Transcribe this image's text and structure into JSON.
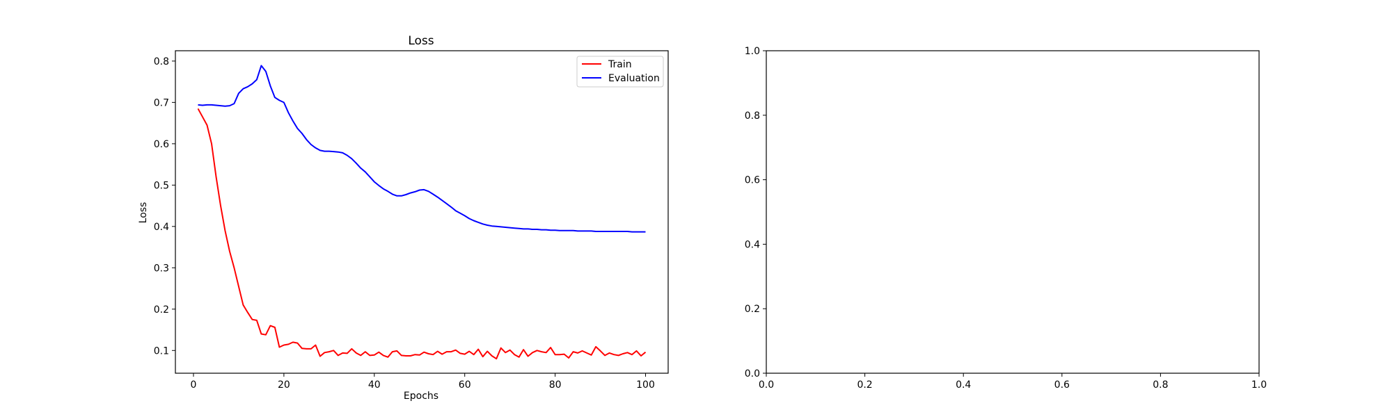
{
  "chart_data": [
    {
      "type": "line",
      "title": "Loss",
      "xlabel": "Epochs",
      "ylabel": "Loss",
      "xlim": [
        -4,
        105
      ],
      "ylim": [
        0.045,
        0.825
      ],
      "xticks": [
        0,
        20,
        40,
        60,
        80,
        100
      ],
      "yticks": [
        0.1,
        0.2,
        0.3,
        0.4,
        0.5,
        0.6,
        0.7,
        0.8
      ],
      "xtick_labels": [
        "0",
        "20",
        "40",
        "60",
        "80",
        "100"
      ],
      "ytick_labels": [
        "0.1",
        "0.2",
        "0.3",
        "0.4",
        "0.5",
        "0.6",
        "0.7",
        "0.8"
      ],
      "grid": false,
      "legend_position": "upper right",
      "x": [
        1,
        2,
        3,
        4,
        5,
        6,
        7,
        8,
        9,
        10,
        11,
        12,
        13,
        14,
        15,
        16,
        17,
        18,
        19,
        20,
        21,
        22,
        23,
        24,
        25,
        26,
        27,
        28,
        29,
        30,
        31,
        32,
        33,
        34,
        35,
        36,
        37,
        38,
        39,
        40,
        41,
        42,
        43,
        44,
        45,
        46,
        47,
        48,
        49,
        50,
        51,
        52,
        53,
        54,
        55,
        56,
        57,
        58,
        59,
        60,
        61,
        62,
        63,
        64,
        65,
        66,
        67,
        68,
        69,
        70,
        71,
        72,
        73,
        74,
        75,
        76,
        77,
        78,
        79,
        80,
        81,
        82,
        83,
        84,
        85,
        86,
        87,
        88,
        89,
        90,
        91,
        92,
        93,
        94,
        95,
        96,
        97,
        98,
        99,
        100
      ],
      "series": [
        {
          "name": "Train",
          "color": "#ff0000",
          "values": [
            0.685,
            0.665,
            0.645,
            0.6,
            0.52,
            0.45,
            0.39,
            0.34,
            0.3,
            0.255,
            0.21,
            0.192,
            0.175,
            0.173,
            0.14,
            0.138,
            0.16,
            0.156,
            0.108,
            0.113,
            0.115,
            0.12,
            0.118,
            0.105,
            0.104,
            0.104,
            0.113,
            0.086,
            0.095,
            0.097,
            0.1,
            0.088,
            0.094,
            0.093,
            0.104,
            0.094,
            0.088,
            0.097,
            0.088,
            0.089,
            0.096,
            0.088,
            0.084,
            0.097,
            0.099,
            0.088,
            0.087,
            0.087,
            0.09,
            0.089,
            0.096,
            0.092,
            0.09,
            0.098,
            0.091,
            0.097,
            0.097,
            0.101,
            0.093,
            0.091,
            0.098,
            0.09,
            0.103,
            0.085,
            0.098,
            0.087,
            0.08,
            0.106,
            0.095,
            0.101,
            0.09,
            0.084,
            0.102,
            0.086,
            0.095,
            0.1,
            0.097,
            0.095,
            0.107,
            0.09,
            0.09,
            0.091,
            0.082,
            0.097,
            0.094,
            0.099,
            0.094,
            0.089,
            0.109,
            0.099,
            0.088,
            0.094,
            0.09,
            0.088,
            0.092,
            0.095,
            0.09,
            0.099,
            0.087,
            0.096
          ]
        },
        {
          "name": "Evaluation",
          "color": "#0000ff",
          "values": [
            0.694,
            0.693,
            0.694,
            0.694,
            0.693,
            0.692,
            0.691,
            0.692,
            0.697,
            0.722,
            0.733,
            0.738,
            0.745,
            0.755,
            0.789,
            0.775,
            0.74,
            0.712,
            0.705,
            0.7,
            0.675,
            0.655,
            0.637,
            0.625,
            0.61,
            0.598,
            0.59,
            0.584,
            0.582,
            0.582,
            0.581,
            0.58,
            0.578,
            0.572,
            0.564,
            0.553,
            0.541,
            0.532,
            0.52,
            0.508,
            0.499,
            0.491,
            0.485,
            0.478,
            0.474,
            0.474,
            0.477,
            0.481,
            0.484,
            0.488,
            0.489,
            0.485,
            0.478,
            0.471,
            0.463,
            0.455,
            0.447,
            0.438,
            0.432,
            0.426,
            0.419,
            0.414,
            0.41,
            0.406,
            0.403,
            0.401,
            0.4,
            0.399,
            0.398,
            0.397,
            0.396,
            0.395,
            0.394,
            0.394,
            0.393,
            0.393,
            0.392,
            0.392,
            0.391,
            0.391,
            0.39,
            0.39,
            0.39,
            0.39,
            0.389,
            0.389,
            0.389,
            0.389,
            0.388,
            0.388,
            0.388,
            0.388,
            0.388,
            0.388,
            0.388,
            0.388,
            0.387,
            0.387,
            0.387,
            0.387
          ]
        }
      ]
    },
    {
      "type": "line",
      "title": "",
      "xlabel": "",
      "ylabel": "",
      "xlim": [
        0,
        1
      ],
      "ylim": [
        0,
        1
      ],
      "xticks": [
        0,
        0.2,
        0.4,
        0.6,
        0.8,
        1.0
      ],
      "yticks": [
        0,
        0.2,
        0.4,
        0.6,
        0.8,
        1.0
      ],
      "xtick_labels": [
        "0.0",
        "0.2",
        "0.4",
        "0.6",
        "0.8",
        "1.0"
      ],
      "ytick_labels": [
        "0.0",
        "0.2",
        "0.4",
        "0.6",
        "0.8",
        "1.0"
      ],
      "grid": false,
      "series": []
    }
  ]
}
